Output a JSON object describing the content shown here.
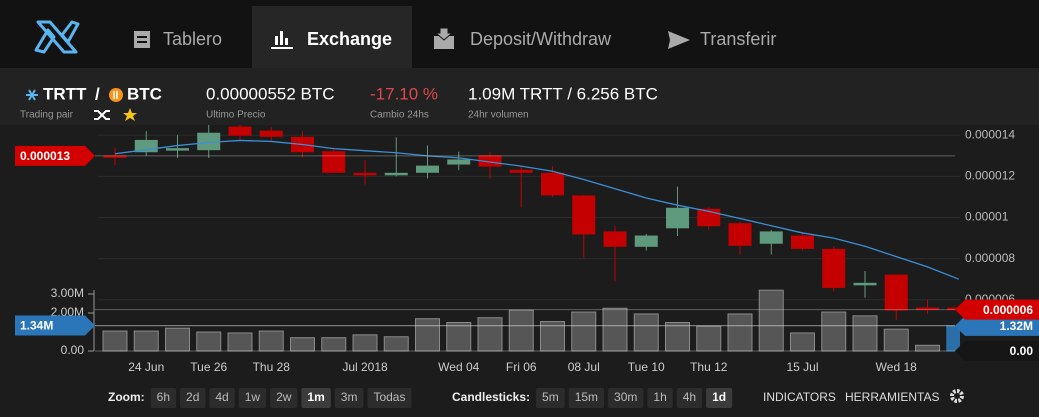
{
  "nav": {
    "tabs": [
      "Tablero",
      "Exchange",
      "Deposit/Withdraw",
      "Transferir"
    ],
    "active": 1
  },
  "pair_info": {
    "base": "TRTT",
    "separator": "/",
    "quote": "BTC",
    "caption": "Trading pair",
    "stats": [
      {
        "value": "0.00000552 BTC",
        "caption": "Ultimo Precio",
        "color": "#ffffff"
      },
      {
        "value": "-17.10 %",
        "caption": "Cambio 24hs",
        "color": "#e0474c"
      },
      {
        "value": "1.09M TRTT / 6.256 BTC",
        "caption": "24hr volumen",
        "color": "#ffffff"
      }
    ]
  },
  "chart_data": {
    "type": "candlestick",
    "categories": [
      null,
      "24 Jun",
      null,
      "Tue 26",
      null,
      "Thu 28",
      null,
      null,
      "Jul 2018",
      null,
      null,
      "Wed 04",
      null,
      "Fri 06",
      null,
      "08 Jul",
      null,
      "Tue 10",
      null,
      "Thu 12",
      null,
      null,
      "15 Jul",
      null,
      null,
      "Wed 18",
      null,
      null
    ],
    "open": [
      1.3e-05,
      1.32e-05,
      1.33e-05,
      1.33e-05,
      1.44e-05,
      1.42e-05,
      1.39e-05,
      1.32e-05,
      1.215e-05,
      1.21e-05,
      1.22e-05,
      1.26e-05,
      1.3e-05,
      1.23e-05,
      1.215e-05,
      1.105e-05,
      9.3e-06,
      8.6e-06,
      9.5e-06,
      1.04e-05,
      9.7e-06,
      8.75e-06,
      9.1e-06,
      8.45e-06,
      6.75e-06,
      7.2e-06,
      5.6e-06,
      5.6e-06
    ],
    "high": [
      1.34e-05,
      1.42e-05,
      1.4e-05,
      1.45e-05,
      1.46e-05,
      1.44e-05,
      1.42e-05,
      1.34e-05,
      1.28e-05,
      1.39e-05,
      1.35e-05,
      1.32e-05,
      1.32e-05,
      1.25e-05,
      1.25e-05,
      1.11e-05,
      9.6e-06,
      9.2e-06,
      1.15e-05,
      1.05e-05,
      9.8e-06,
      9.4e-06,
      9.3e-06,
      8.6e-06,
      7.4e-06,
      7.2e-06,
      6e-06,
      5.7e-06
    ],
    "low": [
      1.255e-05,
      1.3e-05,
      1.29e-05,
      1.29e-05,
      1.38e-05,
      1.37e-05,
      1.29e-05,
      1.22e-05,
      1.16e-05,
      1.2e-05,
      1.19e-05,
      1.23e-05,
      1.19e-05,
      1.05e-05,
      1.1e-05,
      8.05e-06,
      6.9e-06,
      8.4e-06,
      9.1e-06,
      9.4e-06,
      8.2e-06,
      8.2e-06,
      8.4e-06,
      6.4e-06,
      6.1e-06,
      5e-06,
      5.3e-06,
      5.4e-06
    ],
    "close": [
      1.295e-05,
      1.375e-05,
      1.335e-05,
      1.41e-05,
      1.4e-05,
      1.395e-05,
      1.32e-05,
      1.22e-05,
      1.21e-05,
      1.215e-05,
      1.25e-05,
      1.28e-05,
      1.25e-05,
      1.22e-05,
      1.11e-05,
      9.2e-06,
      8.6e-06,
      9.1e-06,
      1.045e-05,
      9.6e-06,
      8.65e-06,
      9.3e-06,
      8.5e-06,
      6.6e-06,
      6.8e-06,
      5.5e-06,
      5.55e-06,
      5.52e-06
    ],
    "up_color": "#5f9a7e",
    "down_color": "#c40000",
    "ma": {
      "color": "#3a8fd6",
      "values": [
        1.31e-05,
        1.33e-05,
        1.35e-05,
        1.365e-05,
        1.375e-05,
        1.37e-05,
        1.355e-05,
        1.335e-05,
        1.325e-05,
        1.315e-05,
        1.3e-05,
        1.29e-05,
        1.27e-05,
        1.25e-05,
        1.225e-05,
        1.185e-05,
        1.14e-05,
        1.095e-05,
        1.06e-05,
        1.03e-05,
        9.95e-06,
        9.6e-06,
        9.25e-06,
        9e-06,
        8.6e-06,
        8.1e-06,
        7.6e-06,
        7e-06
      ]
    },
    "volume": {
      "axis": "y2",
      "color": "#565656",
      "last_color": "#2c6fa8",
      "values": [
        1050000,
        1050000,
        1200000,
        1000000,
        950000,
        1050000,
        700000,
        700000,
        850000,
        750000,
        1700000,
        1500000,
        1750000,
        2150000,
        1550000,
        2050000,
        2250000,
        1950000,
        1500000,
        1300000,
        1950000,
        3200000,
        950000,
        2050000,
        1850000,
        1150000,
        300000,
        1320000
      ]
    },
    "ylim": [
      3.8e-06,
      1.45e-05
    ],
    "yticks": [
      6e-06,
      8e-06,
      1e-05,
      1.2e-05,
      1.4e-05
    ],
    "y2lim": [
      0,
      3500000
    ],
    "y2ticks": [
      {
        "value": 0,
        "label": "0.00"
      },
      {
        "value": 2000000,
        "label": "2.00M"
      },
      {
        "value": 3000000,
        "label": "3.00M"
      }
    ],
    "grid": true,
    "price_badges": [
      {
        "value": 1.3e-05,
        "label": "0.000013",
        "side": "left",
        "color": "#d40000"
      },
      {
        "value": 5.52e-06,
        "label": "0.000006",
        "side": "right",
        "color": "#d40000"
      }
    ],
    "volume_badges": [
      {
        "value": 1340000,
        "label": "1.34M",
        "side": "left",
        "color": "#2a76b8"
      },
      {
        "value": 1320000,
        "label": "1.32M",
        "side": "right",
        "color": "#2a76b8"
      },
      {
        "value": 0,
        "label": "0.00",
        "side": "right",
        "color": "#161616"
      }
    ]
  },
  "toolbar": {
    "zoom": {
      "label": "Zoom:",
      "options": [
        "6h",
        "2d",
        "4d",
        "1w",
        "2w",
        "1m",
        "3m",
        "Todas"
      ],
      "active": 5
    },
    "candlesticks": {
      "label": "Candlesticks:",
      "options": [
        "5m",
        "15m",
        "30m",
        "1h",
        "4h",
        "1d"
      ],
      "active": 5
    },
    "extras": [
      "INDICATORS",
      "HERRAMIENTAS"
    ]
  }
}
